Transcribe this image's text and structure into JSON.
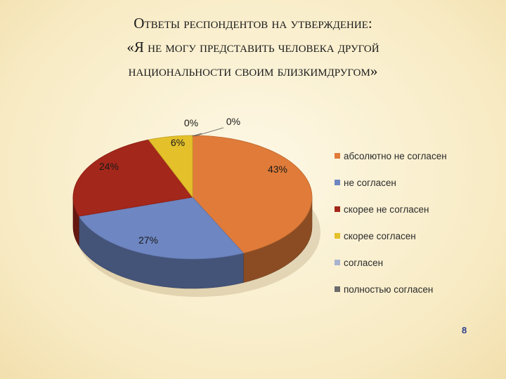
{
  "slide": {
    "title_lines": [
      "Ответы респондентов на утверждение:",
      "«Я не могу представить человека другой",
      "национальности своим близкимдругом»"
    ],
    "page_number": "8"
  },
  "chart_data": {
    "type": "pie",
    "style": "3d",
    "legend_position": "right",
    "slices": [
      {
        "name": "абсолютно не согласен",
        "value": 43,
        "label": "43%",
        "color": "#e07b39"
      },
      {
        "name": "не согласен",
        "value": 27,
        "label": "27%",
        "color": "#6e86c2"
      },
      {
        "name": "скорее не согласен",
        "value": 24,
        "label": "24%",
        "color": "#a3271a"
      },
      {
        "name": "скорее согласен",
        "value": 6,
        "label": "6%",
        "color": "#e4c02a"
      },
      {
        "name": "согласен",
        "value": 0,
        "label": "0%",
        "color": "#a9b2cf"
      },
      {
        "name": "полностью согласен",
        "value": 0,
        "label": "0%",
        "color": "#6b6b6b"
      }
    ]
  }
}
